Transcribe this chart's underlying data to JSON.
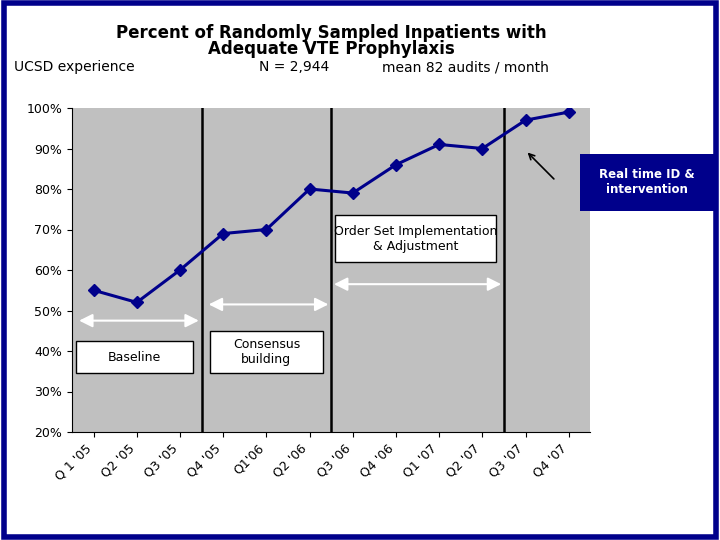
{
  "title_line1": "Percent of Randomly Sampled Inpatients with",
  "title_line2": "Adequate VTE Prophylaxis",
  "subtitle_left": "UCSD experience",
  "subtitle_n": "N = 2,944",
  "subtitle_mean": "mean 82 audits / month",
  "x_labels": [
    "Q 1 '05",
    "Q2 '05",
    "Q3 '05",
    "Q4 '05",
    "Q1'06",
    "Q2 '06",
    "Q3 '06",
    "Q4 '06",
    "Q1 '07",
    "Q2 '07",
    "Q3 '07",
    "Q4 '07"
  ],
  "y_values": [
    0.55,
    0.52,
    0.6,
    0.69,
    0.7,
    0.8,
    0.79,
    0.86,
    0.91,
    0.9,
    0.97,
    0.99
  ],
  "line_color": "#00008B",
  "marker_color": "#00008B",
  "bg_color": "#C0C0C0",
  "outer_bg": "#FFFFFF",
  "border_color": "#00008B",
  "ylim_min": 0.2,
  "ylim_max": 1.0,
  "yticks": [
    0.2,
    0.3,
    0.4,
    0.5,
    0.6,
    0.7,
    0.8,
    0.9,
    1.0
  ],
  "ytick_labels": [
    "20%",
    "30%",
    "40%",
    "50%",
    "60%",
    "70%",
    "80%",
    "90%",
    "100%"
  ],
  "annotation_baseline_text": "Baseline",
  "annotation_consensus_text": "Consensus\nbuilding",
  "annotation_orderset_text": "Order Set Implementation\n& Adjustment",
  "annotation_realtime_text": "Real time ID &\nintervention",
  "title_fontsize": 12,
  "subtitle_fontsize": 10,
  "tick_fontsize": 9,
  "annot_fontsize": 8
}
